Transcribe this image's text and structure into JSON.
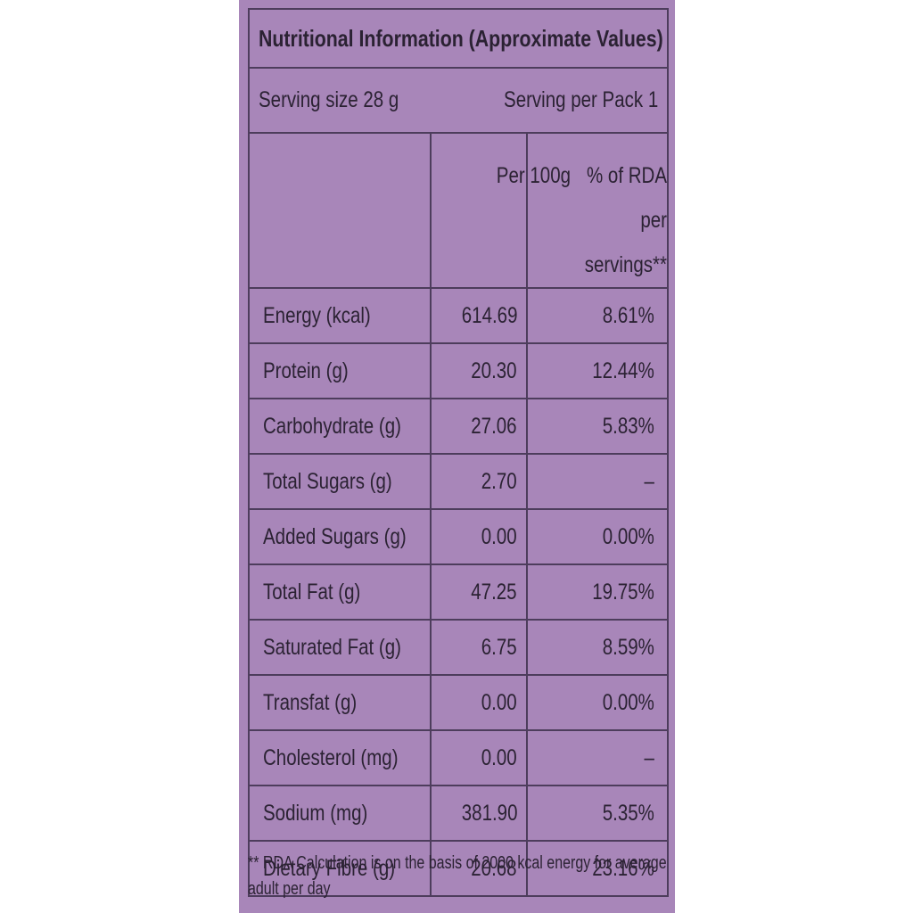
{
  "header": {
    "title": "Nutritional Information (Approximate Values)"
  },
  "serving": {
    "size": "Serving size 28 g",
    "per_pack": "Serving per Pack 1"
  },
  "table": {
    "columns": [
      "Per 100g",
      "% of RDA per servings**"
    ],
    "rows": [
      [
        "Energy (kcal)",
        "614.69",
        "8.61%"
      ],
      [
        "Protein (g)",
        "20.30",
        "12.44%"
      ],
      [
        "Carbohydrate (g)",
        "27.06",
        "5.83%"
      ],
      [
        "Total Sugars (g)",
        "2.70",
        "–"
      ],
      [
        "Added Sugars (g)",
        "0.00",
        "0.00%"
      ],
      [
        "Total Fat (g)",
        "47.25",
        "19.75%"
      ],
      [
        "Saturated Fat (g)",
        "6.75",
        "8.59%"
      ],
      [
        "Transfat (g)",
        "0.00",
        "0.00%"
      ],
      [
        "Cholesterol (mg)",
        "0.00",
        "–"
      ],
      [
        "Sodium (mg)",
        "381.90",
        "5.35%"
      ],
      [
        "Dietary Fibre (g)",
        "20.68",
        "23.16%"
      ]
    ]
  },
  "footnote": "** RDA Calculation is on the basis of 2000 kcal energy for average adult per day"
}
